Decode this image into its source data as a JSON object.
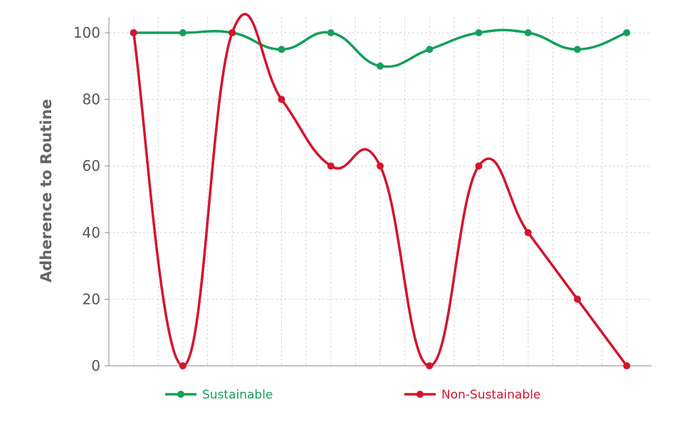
{
  "chart_data": {
    "type": "line",
    "title": "",
    "xlabel": "",
    "ylabel": "Adherence to Routine",
    "x": [
      1,
      2,
      3,
      4,
      5,
      6,
      7,
      8,
      9,
      10,
      11
    ],
    "xlim": [
      0.5,
      11.5
    ],
    "ylim": [
      0,
      100
    ],
    "yticks": [
      0,
      20,
      40,
      60,
      80,
      100
    ],
    "grid": true,
    "legend_position": "bottom",
    "series": [
      {
        "name": "Sustainable",
        "color": "#13a05a",
        "values": [
          100,
          100,
          100,
          95,
          100,
          90,
          95,
          100,
          100,
          95,
          100
        ]
      },
      {
        "name": "Non-Sustainable",
        "color": "#d4142d",
        "values": [
          100,
          0,
          100,
          80,
          60,
          60,
          0,
          60,
          40,
          20,
          0
        ]
      }
    ]
  }
}
